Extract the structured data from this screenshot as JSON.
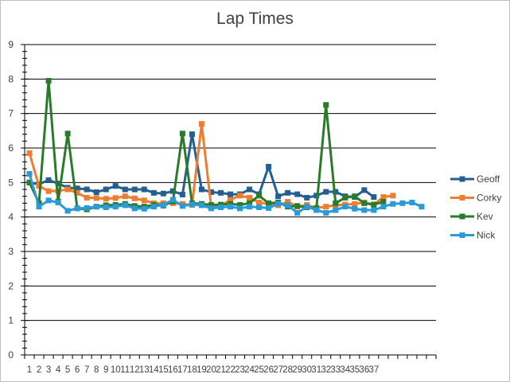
{
  "chart_data": {
    "type": "line",
    "title": "Lap Times",
    "xlabel": "",
    "ylabel": "",
    "ylim": [
      0,
      9
    ],
    "yticks": [
      0,
      1,
      2,
      3,
      4,
      5,
      6,
      7,
      8,
      9
    ],
    "categories": [
      "1",
      "2",
      "3",
      "4",
      "5",
      "6",
      "7",
      "8",
      "9",
      "10",
      "11",
      "12",
      "13",
      "14",
      "15",
      "16",
      "17",
      "18",
      "19",
      "20",
      "21",
      "22",
      "23",
      "24",
      "25",
      "26",
      "27",
      "28",
      "29",
      "30",
      "31",
      "32",
      "33",
      "34",
      "35",
      "36",
      "37",
      "",
      "",
      "",
      "",
      "",
      ""
    ],
    "grid": "horizontal",
    "legend": "right",
    "series": [
      {
        "name": "Geoff",
        "color": "#255e91",
        "marker": "square",
        "values": [
          5.0,
          4.95,
          5.07,
          4.97,
          4.85,
          4.83,
          4.8,
          4.72,
          4.8,
          4.9,
          4.8,
          4.8,
          4.8,
          4.7,
          4.68,
          4.75,
          4.65,
          6.4,
          4.8,
          4.72,
          4.7,
          4.66,
          4.66,
          4.8,
          4.66,
          5.46,
          4.6,
          4.7,
          4.66,
          4.56,
          4.62,
          4.73,
          4.73,
          4.6,
          4.58,
          4.78,
          4.58,
          null,
          null,
          null,
          null,
          null,
          null
        ]
      },
      {
        "name": "Corky",
        "color": "#ed7d31",
        "marker": "square",
        "values": [
          5.85,
          4.9,
          4.75,
          4.76,
          4.8,
          4.7,
          4.56,
          4.55,
          4.53,
          4.55,
          4.6,
          4.54,
          4.48,
          4.4,
          4.4,
          4.4,
          4.38,
          4.35,
          6.7,
          4.3,
          4.32,
          4.5,
          4.62,
          4.56,
          4.42,
          4.38,
          4.34,
          4.44,
          4.3,
          4.35,
          4.26,
          4.3,
          4.34,
          4.36,
          4.38,
          4.42,
          4.36,
          4.58,
          4.62,
          null,
          null,
          null,
          null
        ]
      },
      {
        "name": "Kev",
        "color": "#2a7a2a",
        "marker": "square",
        "values": [
          5.0,
          4.4,
          7.95,
          4.45,
          6.42,
          4.25,
          4.22,
          4.3,
          4.34,
          4.35,
          4.38,
          4.32,
          4.3,
          4.35,
          4.33,
          4.45,
          6.42,
          4.4,
          4.38,
          4.35,
          4.36,
          4.38,
          4.35,
          4.4,
          4.62,
          4.4,
          4.42,
          4.3,
          4.32,
          4.28,
          4.26,
          7.25,
          4.4,
          4.56,
          4.6,
          4.4,
          4.36,
          4.44,
          null,
          null,
          null,
          null,
          null
        ]
      },
      {
        "name": "Nick",
        "color": "#2b9ad6",
        "marker": "square",
        "values": [
          5.25,
          4.3,
          4.48,
          4.42,
          4.18,
          4.25,
          4.26,
          4.3,
          4.28,
          4.3,
          4.34,
          4.25,
          4.24,
          4.3,
          4.35,
          4.5,
          4.32,
          4.36,
          4.34,
          4.25,
          4.28,
          4.3,
          4.25,
          4.3,
          4.28,
          4.26,
          4.38,
          4.34,
          4.12,
          4.3,
          4.2,
          4.12,
          4.2,
          4.3,
          4.24,
          4.2,
          4.2,
          4.3,
          4.38,
          4.4,
          4.42,
          4.3,
          null
        ]
      }
    ]
  }
}
